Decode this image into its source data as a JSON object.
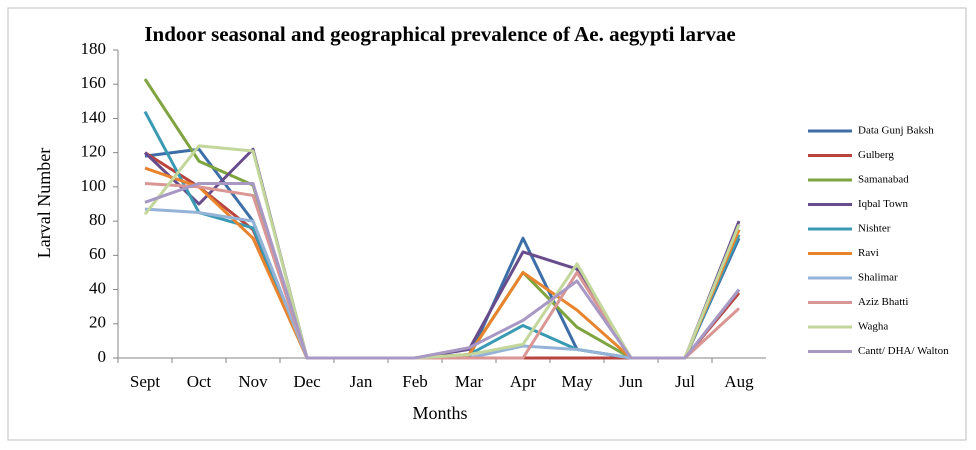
{
  "chart_data": {
    "type": "line",
    "title": "Indoor seasonal and geographical prevalence of Ae. aegypti larvae",
    "x_label": "Months",
    "y_label": "Larval Number",
    "categories": [
      "Sept",
      "Oct",
      "Nov",
      "Dec",
      "Jan",
      "Feb",
      "Mar",
      "Apr",
      "May",
      "Jun",
      "Jul",
      "Aug"
    ],
    "ylim": [
      0,
      180
    ],
    "yticks": [
      0,
      20,
      40,
      60,
      80,
      100,
      120,
      140,
      160,
      180
    ],
    "grid": false,
    "legend": "right",
    "series": [
      {
        "name": "Data Gunj Baksh",
        "color": "#3e6ea8",
        "values": [
          118,
          122,
          80,
          0,
          0,
          0,
          0,
          70,
          5,
          0,
          0,
          70
        ]
      },
      {
        "name": "Gulberg",
        "color": "#b8433f",
        "values": [
          120,
          100,
          75,
          0,
          0,
          0,
          0,
          0,
          0,
          0,
          0,
          38
        ]
      },
      {
        "name": "Samanabad",
        "color": "#7fa33e",
        "values": [
          163,
          115,
          101,
          0,
          0,
          0,
          2,
          50,
          18,
          0,
          0,
          75
        ]
      },
      {
        "name": "Iqbal Town",
        "color": "#684d8c",
        "values": [
          120,
          90,
          122,
          0,
          0,
          0,
          5,
          62,
          52,
          0,
          0,
          80
        ]
      },
      {
        "name": "Nishter",
        "color": "#3a9ab3",
        "values": [
          144,
          85,
          76,
          0,
          0,
          0,
          2,
          19,
          5,
          0,
          0,
          72
        ]
      },
      {
        "name": "Ravi",
        "color": "#e8842d",
        "values": [
          111,
          100,
          70,
          0,
          0,
          0,
          2,
          50,
          28,
          0,
          0,
          75
        ]
      },
      {
        "name": "Shalimar",
        "color": "#95b3d7",
        "values": [
          87,
          85,
          80,
          0,
          0,
          0,
          0,
          7,
          5,
          0,
          0,
          40
        ]
      },
      {
        "name": "Aziz Bhatti",
        "color": "#d99694",
        "values": [
          102,
          100,
          95,
          0,
          0,
          0,
          0,
          0,
          50,
          0,
          0,
          29
        ]
      },
      {
        "name": "Wagha",
        "color": "#c3d69b",
        "values": [
          84,
          124,
          121,
          0,
          0,
          0,
          2,
          8,
          55,
          0,
          0,
          78
        ]
      },
      {
        "name": "Cantt/ DHA/ Walton",
        "color": "#a898c4",
        "values": [
          91,
          102,
          102,
          0,
          0,
          0,
          6,
          22,
          45,
          0,
          0,
          40
        ]
      }
    ]
  }
}
